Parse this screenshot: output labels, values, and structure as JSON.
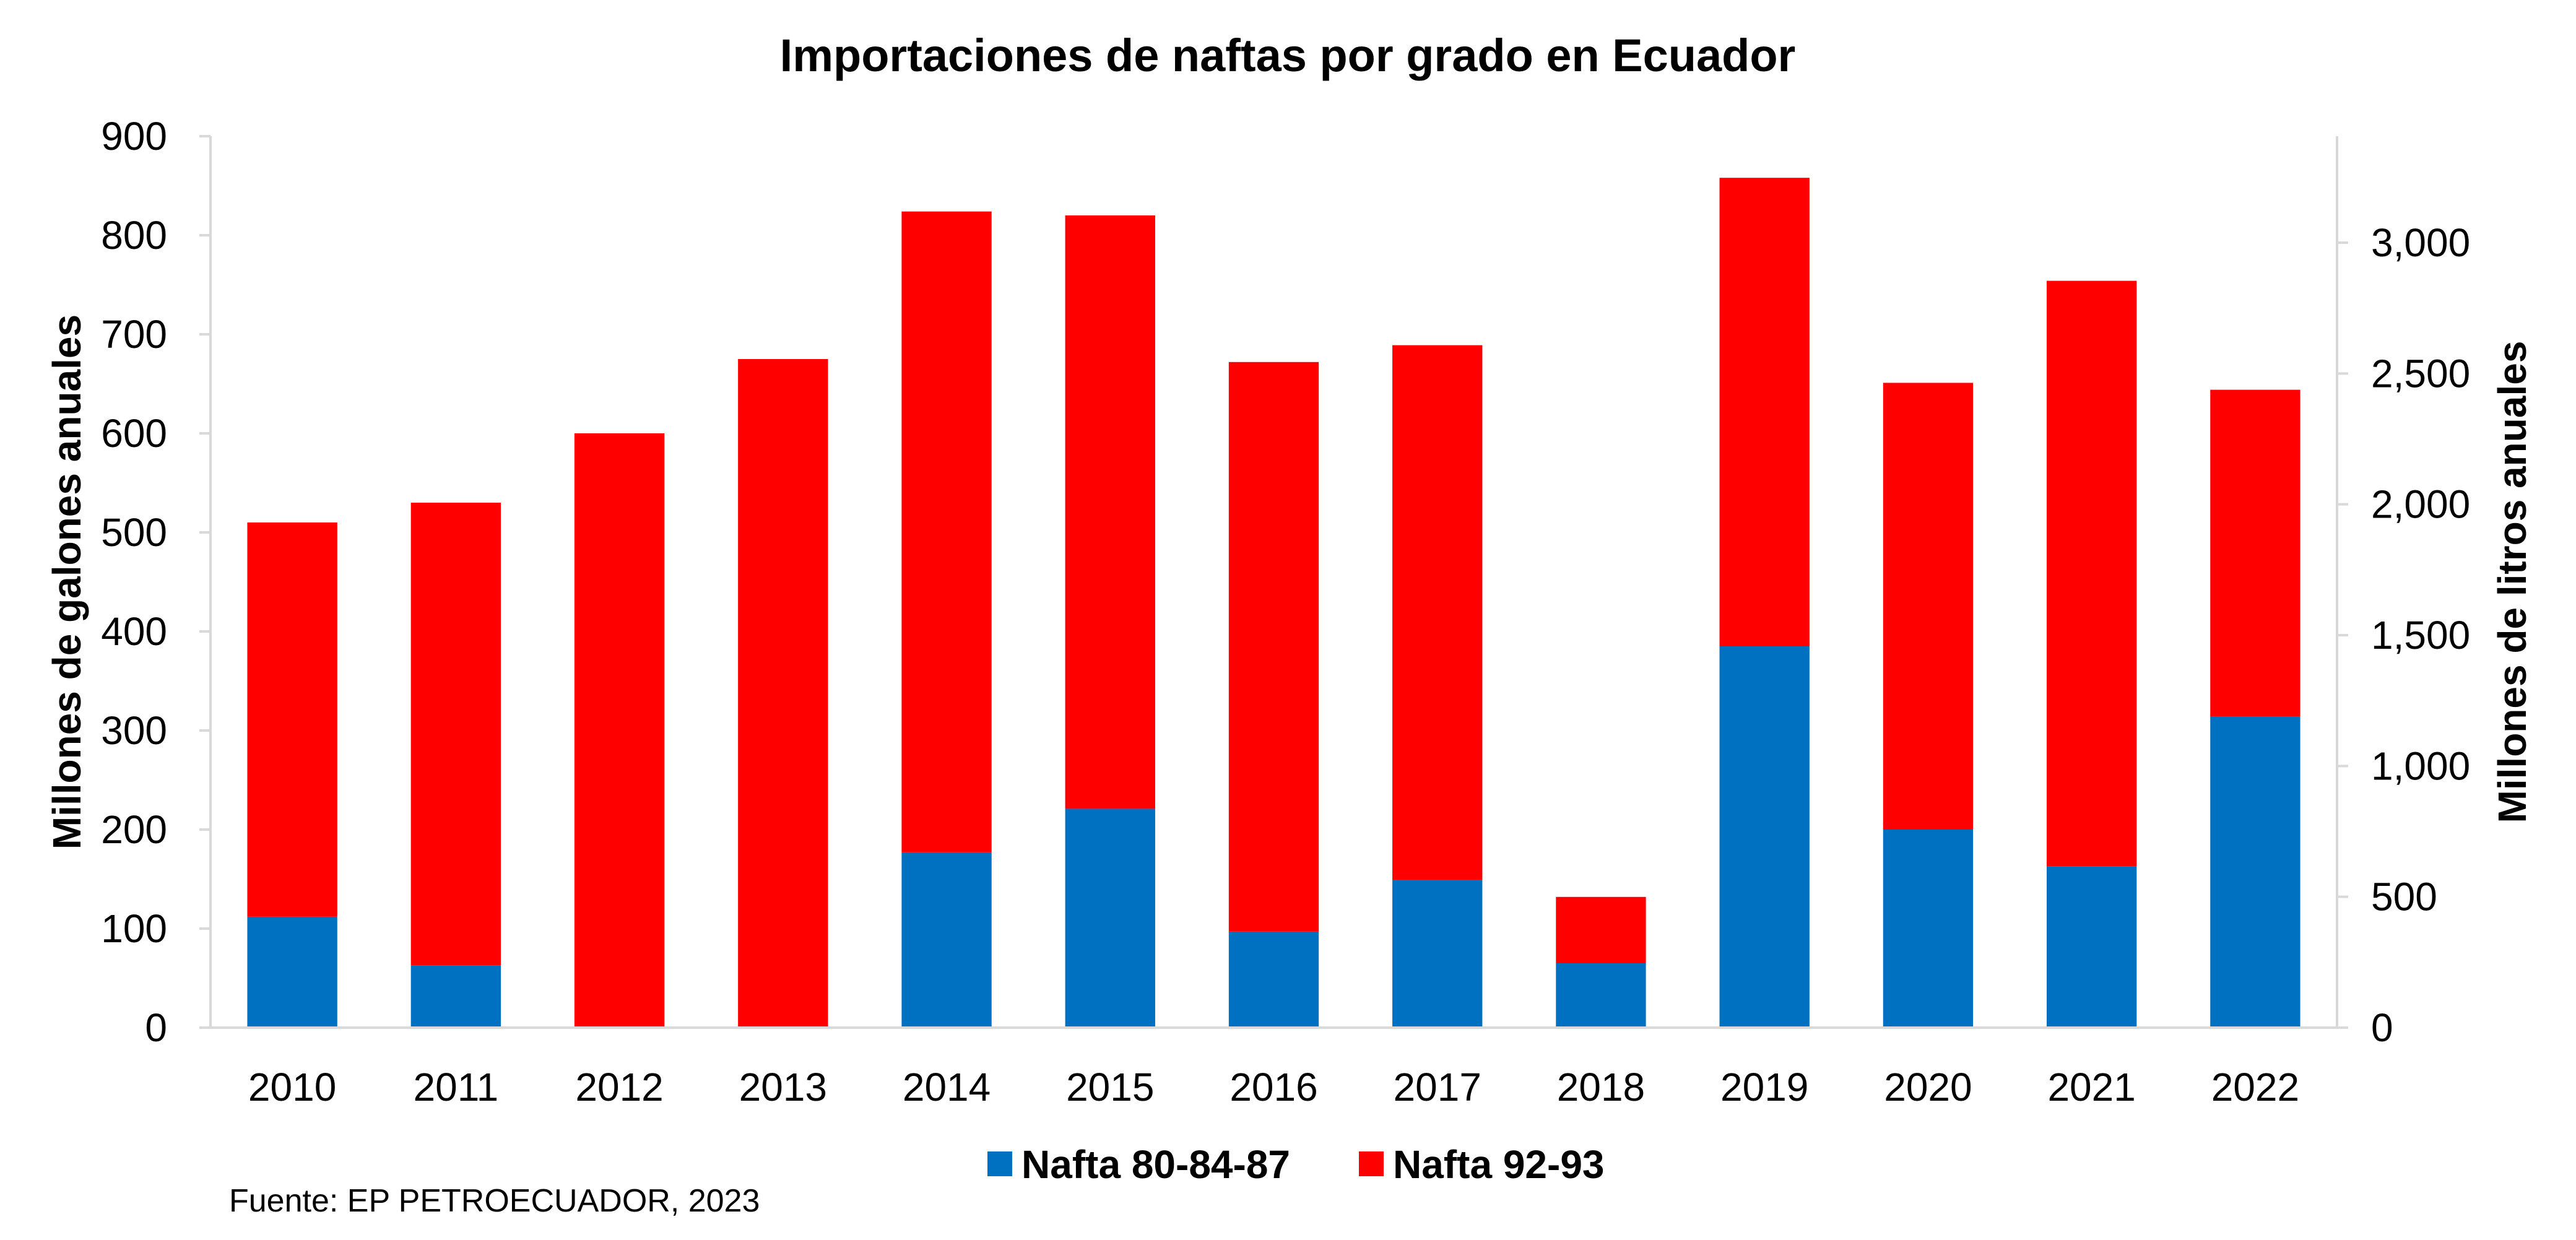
{
  "chart_data": {
    "type": "bar",
    "stacked": true,
    "title": "Importaciones de naftas por grado en Ecuador",
    "categories": [
      "2010",
      "2011",
      "2012",
      "2013",
      "2014",
      "2015",
      "2016",
      "2017",
      "2018",
      "2019",
      "2020",
      "2021",
      "2022"
    ],
    "series": [
      {
        "name": "Nafta 80-84-87",
        "color": "#0070C0",
        "values": [
          112,
          63,
          0,
          0,
          177,
          221,
          97,
          149,
          65,
          385,
          200,
          163,
          314
        ]
      },
      {
        "name": "Nafta 92-93",
        "color": "#FF0000",
        "values": [
          398,
          467,
          600,
          675,
          647,
          599,
          575,
          540,
          67,
          473,
          451,
          591,
          330
        ]
      }
    ],
    "ylabel": "Millones de galones anuales",
    "ylim": [
      0,
      900
    ],
    "yticks": [
      "0",
      "100",
      "200",
      "300",
      "400",
      "500",
      "600",
      "700",
      "800",
      "900"
    ],
    "y2label": "Millones de litros anuales",
    "y2lim": [
      0,
      3406.9
    ],
    "y2ticks": [
      "0",
      "500",
      "1,000",
      "1,500",
      "2,000",
      "2,500",
      "3,000"
    ],
    "legend_position": "bottom",
    "grid": false
  },
  "source_note": "Fuente: EP PETROECUADOR, 2023"
}
